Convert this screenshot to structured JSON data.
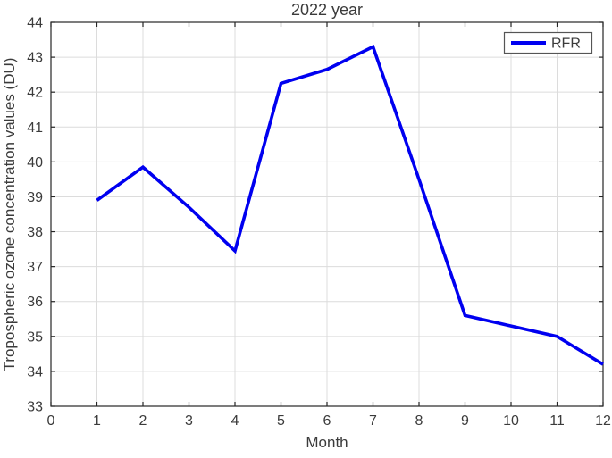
{
  "chart_data": {
    "type": "line",
    "title": "2022 year",
    "xlabel": "Month",
    "ylabel": "Tropospheric ozone concentration values (DU)",
    "x": [
      1,
      2,
      3,
      4,
      5,
      6,
      7,
      8,
      9,
      10,
      11,
      12
    ],
    "series": [
      {
        "name": "RFR",
        "color": "#0000f0",
        "values": [
          38.9,
          39.85,
          38.7,
          37.45,
          42.25,
          42.65,
          43.3,
          39.5,
          35.6,
          35.3,
          35.0,
          34.2
        ]
      }
    ],
    "xlim": [
      0,
      12
    ],
    "ylim": [
      33,
      44
    ],
    "xticks": [
      0,
      1,
      2,
      3,
      4,
      5,
      6,
      7,
      8,
      9,
      10,
      11,
      12
    ],
    "yticks": [
      33,
      34,
      35,
      36,
      37,
      38,
      39,
      40,
      41,
      42,
      43,
      44
    ],
    "grid": true,
    "legend": {
      "position": "top-right"
    },
    "colors": {
      "line": "#0000f0",
      "grid": "#dcdcdc",
      "axis": "#262626",
      "text": "#3b3b3b",
      "legend_border": "#555555",
      "background": "#ffffff"
    }
  }
}
